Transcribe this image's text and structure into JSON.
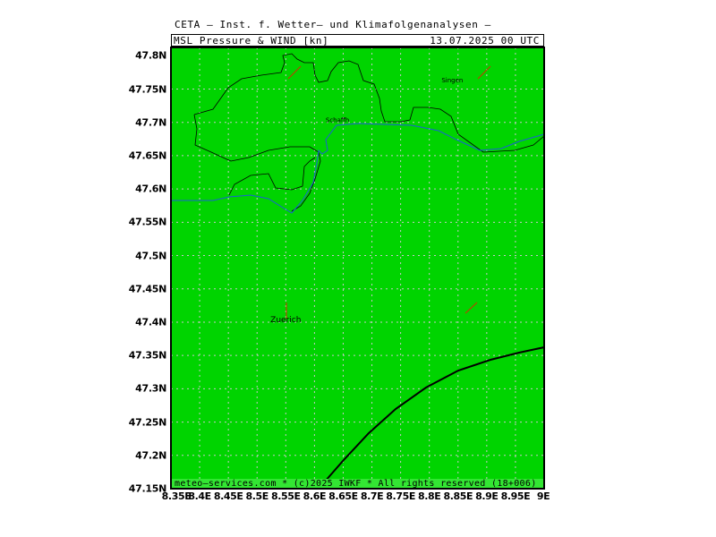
{
  "header": {
    "institution": "CETA – Inst. f. Wetter– und Klimafolgenanalysen –",
    "parameter": "MSL_Pressure_&_WIND_[kn]",
    "datetime": "13.07.2025 00 UTC"
  },
  "axes": {
    "lat_labels": [
      "47.8N",
      "47.75N",
      "47.7N",
      "47.65N",
      "47.6N",
      "47.55N",
      "47.5N",
      "47.45N",
      "47.4N",
      "47.35N",
      "47.3N",
      "47.25N",
      "47.2N",
      "47.15N"
    ],
    "lon_labels": [
      "8.35E",
      "8.4E",
      "8.45E",
      "8.5E",
      "8.55E",
      "8.6E",
      "8.65E",
      "8.7E",
      "8.75E",
      "8.8E",
      "8.85E",
      "8.9E",
      "8.95E",
      "9E"
    ]
  },
  "cities": [
    {
      "name": "Singen",
      "lon": 8.84,
      "lat": 47.76
    },
    {
      "name": "Schaffh",
      "lon": 8.64,
      "lat": 47.7
    },
    {
      "name": "Zuerich",
      "lon": 8.55,
      "lat": 47.4
    }
  ],
  "colors": {
    "land": "#00d400",
    "border": "#000000",
    "river": "#1a5fd6",
    "wind_barb": "#cc3300",
    "isobar": "#000000",
    "grid": "#c8c8c8"
  },
  "credit": "meteo–services.com * (c)2025 IWKF * All rights reserved (18+006)"
}
